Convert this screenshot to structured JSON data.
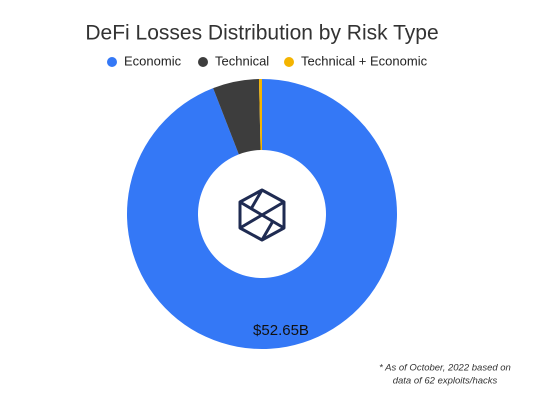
{
  "chart_data": {
    "type": "donut",
    "title": "DeFi Losses Distribution by Risk Type",
    "categories": [
      "Economic",
      "Technical",
      "Technical + Economic"
    ],
    "series": [
      {
        "name": "DeFi Losses",
        "values": [
          52.65,
          3.1,
          0.2
        ],
        "value_labels": [
          "$52.65B",
          null,
          null
        ]
      }
    ],
    "colors": [
      "#3478f6",
      "#3d3d3d",
      "#f4b400"
    ],
    "legend": "top",
    "annotations": [
      "* As of October, 2022 based on",
      "data of 62 exploits/hacks"
    ]
  }
}
